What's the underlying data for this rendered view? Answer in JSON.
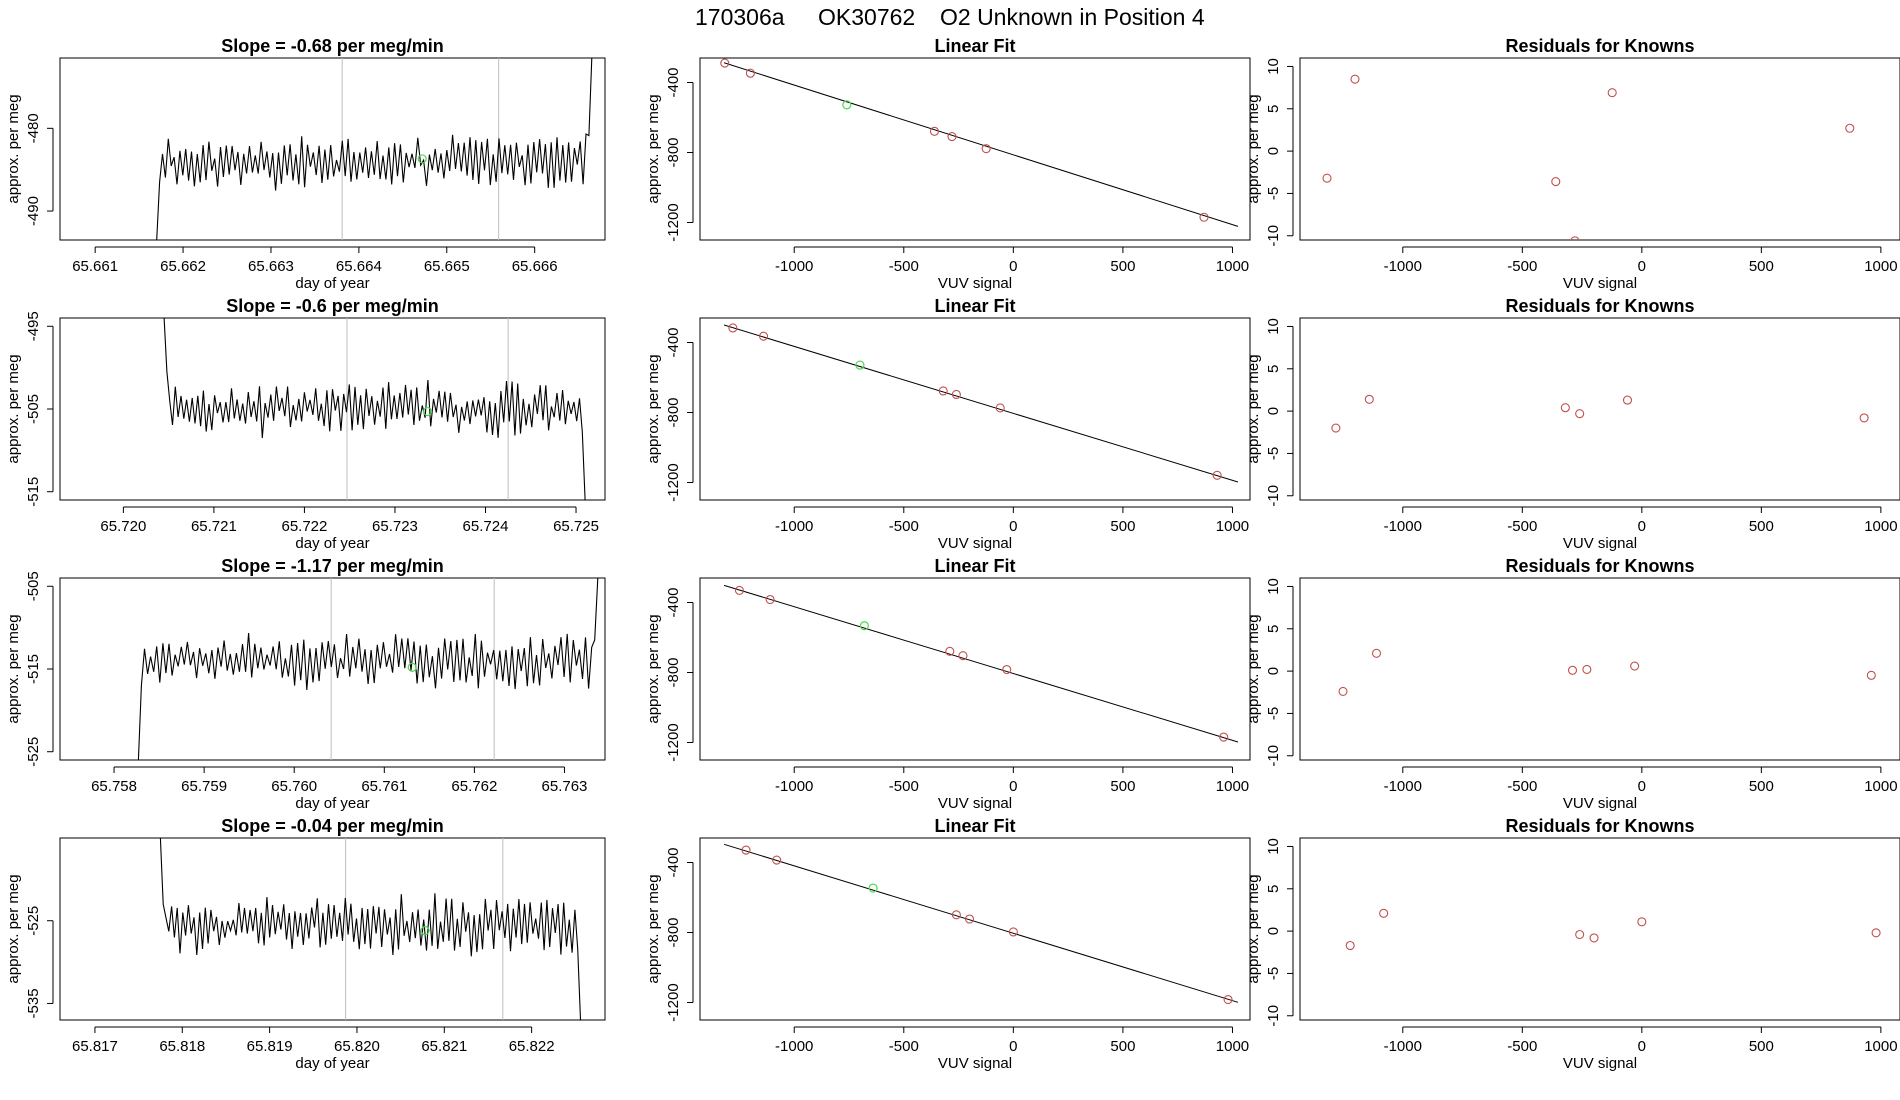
{
  "header": {
    "run_id": "170306a",
    "tank_id": "OK30762",
    "description": "O2 Unknown in Position  4"
  },
  "colors": {
    "trace": "#000000",
    "known_points": "#c0504d",
    "unknown_point": "#4cd94c",
    "sample_bounds": "#bdbdbd"
  },
  "chart_data": [
    {
      "type": "line",
      "row": 1,
      "panel": "timeseries",
      "title_prefix": "Slope = ",
      "slope": "-0.68",
      "title_suffix": " per meg/min",
      "xlabel": "day of year",
      "ylabel": "approx. per meg",
      "xlim": [
        65.6606,
        65.6668
      ],
      "ylim": [
        -493.5,
        -471.5
      ],
      "xticks": [
        65.661,
        65.662,
        65.663,
        65.664,
        65.665,
        65.666
      ],
      "xtick_labels": [
        "65.661",
        "65.662",
        "65.663",
        "65.664",
        "65.665",
        "65.666"
      ],
      "yticks": [
        -490,
        -480
      ],
      "ytick_labels": [
        "-490",
        "-480"
      ],
      "x_start": 65.6617,
      "x_end": 65.66665,
      "y_start": -493.5,
      "y_end": -471.5,
      "baseline": -484,
      "amplitude": 3.0,
      "level_start": -486.5,
      "seed": 11,
      "vlines": [
        65.66381,
        65.66559
      ],
      "unknown_point": {
        "x": 65.66472,
        "y": -483.7
      }
    },
    {
      "type": "scatter",
      "row": 1,
      "panel": "fit",
      "title": "Linear Fit",
      "xlabel": "VUV signal",
      "ylabel": "approx. per meg",
      "xlim": [
        -1430,
        1080
      ],
      "ylim": [
        -1300,
        -260
      ],
      "xticks": [
        -1000,
        -500,
        0,
        500,
        1000
      ],
      "xtick_labels": [
        "-1000",
        "-500",
        "0",
        "500",
        "1000"
      ],
      "yticks": [
        -1200,
        -800,
        -400
      ],
      "ytick_labels": [
        "-1200",
        "-800",
        "-400"
      ],
      "fit_line": {
        "x0": -1320,
        "y0": -287,
        "x1": 1025,
        "y1": -1222
      },
      "known": [
        {
          "x": -1317,
          "y": -289
        },
        {
          "x": -1200,
          "y": -347
        },
        {
          "x": -360,
          "y": -679
        },
        {
          "x": -280,
          "y": -709
        },
        {
          "x": -124,
          "y": -778
        },
        {
          "x": 870,
          "y": -1170
        }
      ],
      "unknown": {
        "x": -760,
        "y": -528
      }
    },
    {
      "type": "scatter",
      "row": 1,
      "panel": "residuals",
      "title": "Residuals for Knowns",
      "xlabel": "VUV signal",
      "ylabel": "approx. per meg",
      "xlim": [
        -1430,
        1080
      ],
      "ylim": [
        -10.5,
        11
      ],
      "xticks": [
        -1000,
        -500,
        0,
        500,
        1000
      ],
      "xtick_labels": [
        "-1000",
        "-500",
        "0",
        "500",
        "1000"
      ],
      "yticks": [
        -10,
        -5,
        0,
        5,
        10
      ],
      "ytick_labels": [
        "-10",
        "-5",
        "0",
        "5",
        "10"
      ],
      "points": [
        {
          "x": -1317,
          "y": -3.2
        },
        {
          "x": -1200,
          "y": 8.5
        },
        {
          "x": -360,
          "y": -3.6
        },
        {
          "x": -280,
          "y": -10.6
        },
        {
          "x": -124,
          "y": 6.9
        },
        {
          "x": 870,
          "y": 2.7
        }
      ]
    },
    {
      "type": "line",
      "row": 2,
      "panel": "timeseries",
      "title_prefix": "Slope = ",
      "slope": "-0.6",
      "title_suffix": " per meg/min",
      "xlabel": "day of year",
      "ylabel": "approx. per meg",
      "xlim": [
        65.7193,
        65.72532
      ],
      "ylim": [
        -516,
        -494
      ],
      "xticks": [
        65.72,
        65.721,
        65.722,
        65.723,
        65.724,
        65.725
      ],
      "xtick_labels": [
        "65.720",
        "65.721",
        "65.722",
        "65.723",
        "65.724",
        "65.725"
      ],
      "yticks": [
        -515,
        -505,
        -495
      ],
      "ytick_labels": [
        "-515",
        "-505",
        "-495"
      ],
      "x_start": 65.72045,
      "x_end": 65.7251,
      "y_start": -494,
      "y_end": -516,
      "baseline": -505,
      "amplitude": 3.0,
      "level_start": -500.5,
      "seed": 23,
      "vlines": [
        65.72247,
        65.72425
      ],
      "unknown_point": {
        "x": 65.72336,
        "y": -505.3
      }
    },
    {
      "type": "scatter",
      "row": 2,
      "panel": "fit",
      "title": "Linear Fit",
      "xlabel": "VUV signal",
      "ylabel": "approx. per meg",
      "xlim": [
        -1430,
        1080
      ],
      "ylim": [
        -1300,
        -260
      ],
      "xticks": [
        -1000,
        -500,
        0,
        500,
        1000
      ],
      "xtick_labels": [
        "-1000",
        "-500",
        "0",
        "500",
        "1000"
      ],
      "yticks": [
        -1200,
        -800,
        -400
      ],
      "ytick_labels": [
        "-1200",
        "-800",
        "-400"
      ],
      "fit_line": {
        "x0": -1320,
        "y0": -300,
        "x1": 1025,
        "y1": -1197
      },
      "known": [
        {
          "x": -1280,
          "y": -317
        },
        {
          "x": -1140,
          "y": -364
        },
        {
          "x": -320,
          "y": -677
        },
        {
          "x": -260,
          "y": -697
        },
        {
          "x": -60,
          "y": -774
        },
        {
          "x": 930,
          "y": -1159
        }
      ],
      "unknown": {
        "x": -700,
        "y": -529
      }
    },
    {
      "type": "scatter",
      "row": 2,
      "panel": "residuals",
      "title": "Residuals for Knowns",
      "xlabel": "VUV signal",
      "ylabel": "approx. per meg",
      "xlim": [
        -1430,
        1080
      ],
      "ylim": [
        -10.5,
        11
      ],
      "xticks": [
        -1000,
        -500,
        0,
        500,
        1000
      ],
      "xtick_labels": [
        "-1000",
        "-500",
        "0",
        "500",
        "1000"
      ],
      "yticks": [
        -10,
        -5,
        0,
        5,
        10
      ],
      "ytick_labels": [
        "-10",
        "-5",
        "0",
        "5",
        "10"
      ],
      "points": [
        {
          "x": -1280,
          "y": -2.0
        },
        {
          "x": -1140,
          "y": 1.4
        },
        {
          "x": -320,
          "y": 0.4
        },
        {
          "x": -260,
          "y": -0.3
        },
        {
          "x": -60,
          "y": 1.3
        },
        {
          "x": 930,
          "y": -0.8
        }
      ]
    },
    {
      "type": "line",
      "row": 3,
      "panel": "timeseries",
      "title_prefix": "Slope = ",
      "slope": "-1.17",
      "title_suffix": " per meg/min",
      "xlabel": "day of year",
      "ylabel": "approx. per meg",
      "xlim": [
        65.7574,
        65.76345
      ],
      "ylim": [
        -526,
        -504
      ],
      "xticks": [
        65.758,
        65.759,
        65.76,
        65.761,
        65.762,
        65.763
      ],
      "xtick_labels": [
        "65.758",
        "65.759",
        "65.760",
        "65.761",
        "65.762",
        "65.763"
      ],
      "yticks": [
        -525,
        -515,
        -505
      ],
      "ytick_labels": [
        "-525",
        "-515",
        "-505"
      ],
      "x_start": 65.75827,
      "x_end": 65.76337,
      "y_start": -526,
      "y_end": -504,
      "baseline": -514,
      "amplitude": 3.2,
      "level_start": -517,
      "seed": 37,
      "vlines": [
        65.76041,
        65.76222
      ],
      "unknown_point": {
        "x": 65.76131,
        "y": -514.8
      }
    },
    {
      "type": "scatter",
      "row": 3,
      "panel": "fit",
      "title": "Linear Fit",
      "xlabel": "VUV signal",
      "ylabel": "approx. per meg",
      "xlim": [
        -1430,
        1080
      ],
      "ylim": [
        -1300,
        -260
      ],
      "xticks": [
        -1000,
        -500,
        0,
        500,
        1000
      ],
      "xtick_labels": [
        "-1000",
        "-500",
        "0",
        "500",
        "1000"
      ],
      "yticks": [
        -1200,
        -800,
        -400
      ],
      "ytick_labels": [
        "-1200",
        "-800",
        "-400"
      ],
      "fit_line": {
        "x0": -1320,
        "y0": -302,
        "x1": 1025,
        "y1": -1197
      },
      "known": [
        {
          "x": -1250,
          "y": -331
        },
        {
          "x": -1110,
          "y": -383
        },
        {
          "x": -290,
          "y": -679
        },
        {
          "x": -230,
          "y": -704
        },
        {
          "x": -30,
          "y": -783
        },
        {
          "x": 960,
          "y": -1169
        }
      ],
      "unknown": {
        "x": -680,
        "y": -533
      }
    },
    {
      "type": "scatter",
      "row": 3,
      "panel": "residuals",
      "title": "Residuals for Knowns",
      "xlabel": "VUV signal",
      "ylabel": "approx. per meg",
      "xlim": [
        -1430,
        1080
      ],
      "ylim": [
        -10.5,
        11
      ],
      "xticks": [
        -1000,
        -500,
        0,
        500,
        1000
      ],
      "xtick_labels": [
        "-1000",
        "-500",
        "0",
        "500",
        "1000"
      ],
      "yticks": [
        -10,
        -5,
        0,
        5,
        10
      ],
      "ytick_labels": [
        "-10",
        "-5",
        "0",
        "5",
        "10"
      ],
      "points": [
        {
          "x": -1250,
          "y": -2.4
        },
        {
          "x": -1110,
          "y": 2.1
        },
        {
          "x": -290,
          "y": 0.1
        },
        {
          "x": -230,
          "y": 0.2
        },
        {
          "x": -30,
          "y": 0.6
        },
        {
          "x": 960,
          "y": -0.5
        }
      ]
    },
    {
      "type": "line",
      "row": 4,
      "panel": "timeseries",
      "title_prefix": "Slope = ",
      "slope": "-0.04",
      "title_suffix": " per meg/min",
      "xlabel": "day of year",
      "ylabel": "approx. per meg",
      "xlim": [
        65.8166,
        65.82284
      ],
      "ylim": [
        -537,
        -515
      ],
      "xticks": [
        65.817,
        65.818,
        65.819,
        65.82,
        65.821,
        65.822
      ],
      "xtick_labels": [
        "65.817",
        "65.818",
        "65.819",
        "65.820",
        "65.821",
        "65.822"
      ],
      "yticks": [
        -535,
        -525
      ],
      "ytick_labels": [
        "-535",
        "-525"
      ],
      "x_start": 65.81775,
      "x_end": 65.82256,
      "y_start": -515,
      "y_end": -537,
      "baseline": -525.5,
      "amplitude": 3.3,
      "level_start": -523,
      "seed": 53,
      "vlines": [
        65.81987,
        65.82167
      ],
      "unknown_point": {
        "x": 65.82078,
        "y": -526.2
      }
    },
    {
      "type": "scatter",
      "row": 4,
      "panel": "fit",
      "title": "Linear Fit",
      "xlabel": "VUV signal",
      "ylabel": "approx. per meg",
      "xlim": [
        -1430,
        1080
      ],
      "ylim": [
        -1300,
        -260
      ],
      "xticks": [
        -1000,
        -500,
        0,
        500,
        1000
      ],
      "xtick_labels": [
        "-1000",
        "-500",
        "0",
        "500",
        "1000"
      ],
      "yticks": [
        -1200,
        -800,
        -400
      ],
      "ytick_labels": [
        "-1200",
        "-800",
        "-400"
      ],
      "fit_line": {
        "x0": -1320,
        "y0": -296,
        "x1": 1025,
        "y1": -1199
      },
      "known": [
        {
          "x": -1220,
          "y": -329
        },
        {
          "x": -1080,
          "y": -386
        },
        {
          "x": -260,
          "y": -699
        },
        {
          "x": -200,
          "y": -723
        },
        {
          "x": 0,
          "y": -797
        },
        {
          "x": 980,
          "y": -1183
        }
      ],
      "unknown": {
        "x": -640,
        "y": -546
      }
    },
    {
      "type": "scatter",
      "row": 4,
      "panel": "residuals",
      "title": "Residuals for Knowns",
      "xlabel": "VUV signal",
      "ylabel": "approx. per meg",
      "xlim": [
        -1430,
        1080
      ],
      "ylim": [
        -10.5,
        11
      ],
      "xticks": [
        -1000,
        -500,
        0,
        500,
        1000
      ],
      "xtick_labels": [
        "-1000",
        "-500",
        "0",
        "500",
        "1000"
      ],
      "yticks": [
        -10,
        -5,
        0,
        5,
        10
      ],
      "ytick_labels": [
        "-10",
        "-5",
        "0",
        "5",
        "10"
      ],
      "points": [
        {
          "x": -1220,
          "y": -1.7
        },
        {
          "x": -1080,
          "y": 2.1
        },
        {
          "x": -260,
          "y": -0.4
        },
        {
          "x": -200,
          "y": -0.8
        },
        {
          "x": 0,
          "y": 1.1
        },
        {
          "x": 980,
          "y": -0.2
        }
      ]
    }
  ]
}
